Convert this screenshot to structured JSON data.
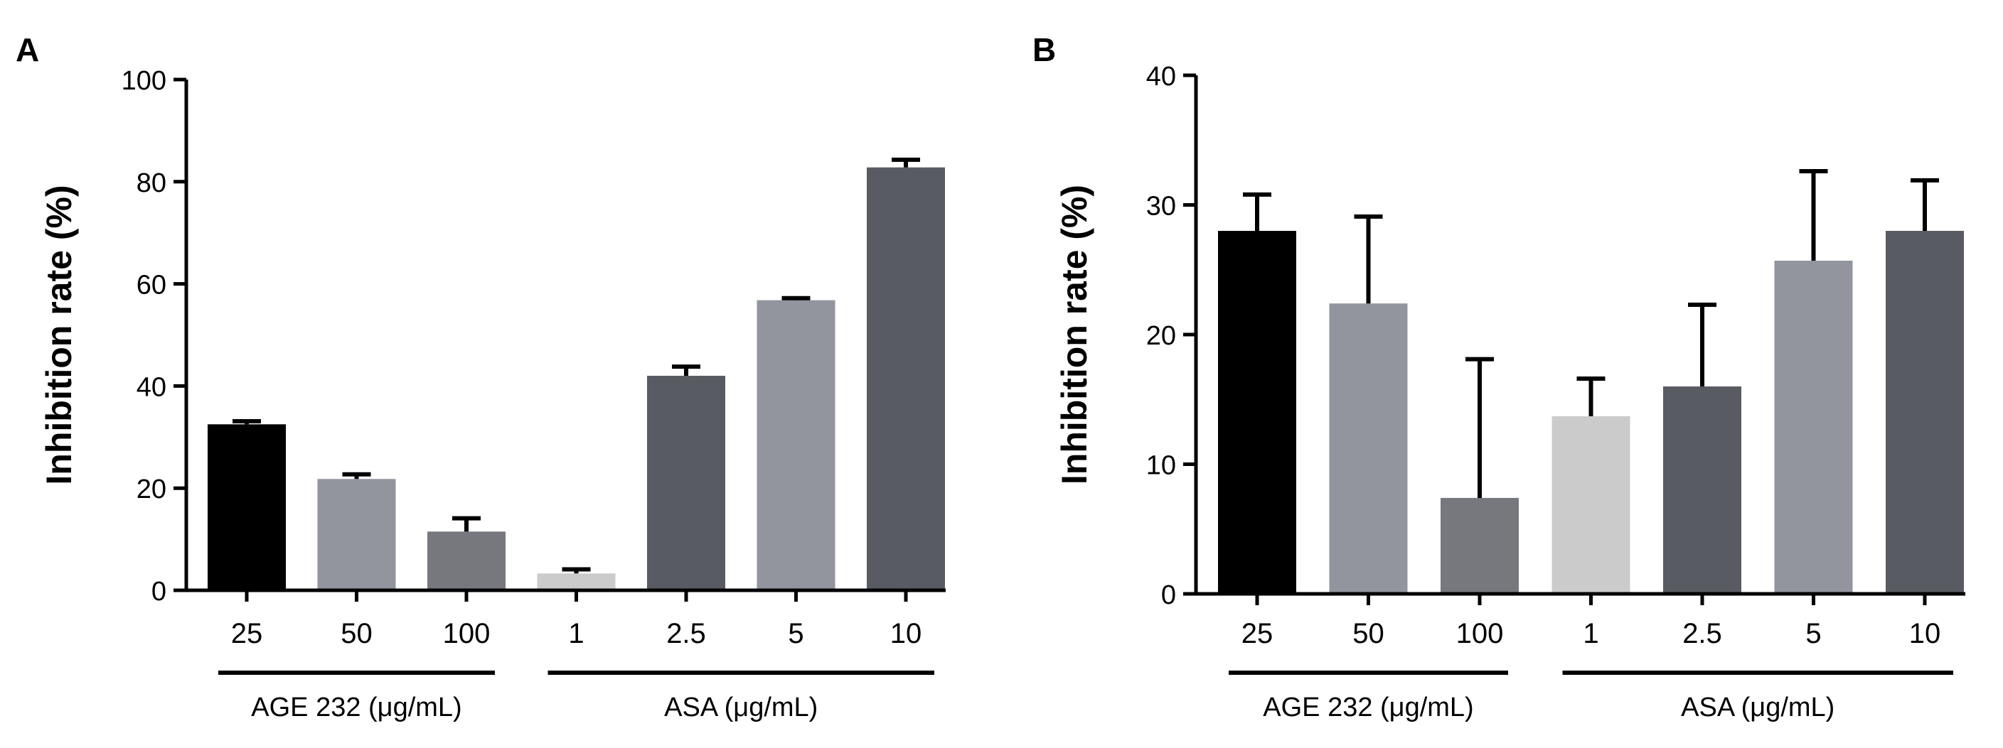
{
  "chart_data": [
    {
      "panel_label": "A",
      "type": "bar",
      "ylabel": "Inhibition rate (%)",
      "ylim": [
        0,
        100
      ],
      "yticks": [
        0,
        20,
        40,
        60,
        80,
        100
      ],
      "ytick_labels": [
        "0",
        "20",
        "40",
        "60",
        "80",
        "100"
      ],
      "categories": [
        "25",
        "50",
        "100",
        "1",
        "2.5",
        "5",
        "10"
      ],
      "values": [
        32.5,
        21.8,
        11.5,
        3.3,
        42.0,
        56.8,
        82.8
      ],
      "errors": [
        0.6,
        0.9,
        2.6,
        0.8,
        1.8,
        0.4,
        1.5
      ],
      "colors": [
        "#000000",
        "#92959e",
        "#76787e",
        "#cbcbcb",
        "#595b62",
        "#92959e",
        "#595b62"
      ],
      "groups": [
        {
          "label": "AGE 232 (μg/mL)",
          "start": 0,
          "end": 2
        },
        {
          "label": "ASA (μg/mL)",
          "start": 3,
          "end": 6
        }
      ]
    },
    {
      "panel_label": "B",
      "type": "bar",
      "ylabel": "Inhibition rate (%)",
      "ylim": [
        0,
        40
      ],
      "yticks": [
        0,
        10,
        20,
        30,
        40
      ],
      "ytick_labels": [
        "0",
        "10",
        "20",
        "30",
        "40"
      ],
      "categories": [
        "25",
        "50",
        "100",
        "1",
        "2.5",
        "5",
        "10"
      ],
      "values": [
        28.0,
        22.4,
        7.4,
        13.7,
        16.0,
        25.7,
        28.0
      ],
      "errors": [
        2.8,
        6.7,
        10.7,
        2.9,
        6.3,
        6.9,
        3.9
      ],
      "colors": [
        "#000000",
        "#92959e",
        "#76787e",
        "#cbcbcb",
        "#595b62",
        "#92959e",
        "#595b62"
      ],
      "groups": [
        {
          "label": "AGE 232 (μg/mL)",
          "start": 0,
          "end": 2
        },
        {
          "label": "ASA (μg/mL)",
          "start": 3,
          "end": 6
        }
      ]
    }
  ]
}
